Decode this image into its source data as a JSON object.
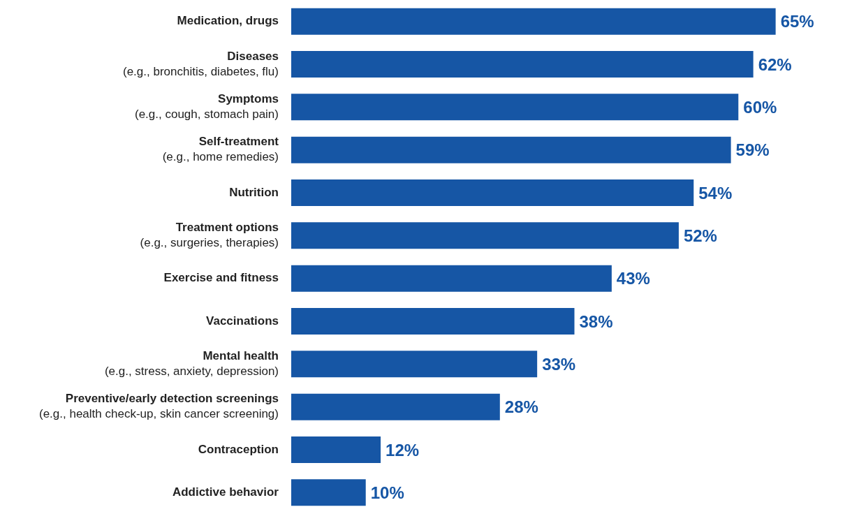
{
  "chart_data": {
    "type": "bar",
    "orientation": "horizontal",
    "categories": [
      "Medication, drugs",
      "Diseases\n(e.g., bronchitis, diabetes, flu)",
      "Symptoms\n(e.g., cough, stomach pain)",
      "Self-treatment\n(e.g., home remedies)",
      "Nutrition",
      "Treatment options\n(e.g., surgeries, therapies)",
      "Exercise and fitness",
      "Vaccinations",
      "Mental health\n(e.g., stress, anxiety, depression)",
      "Preventive/early detection screenings\n(e.g., health check-up, skin cancer screening)",
      "Contraception",
      "Addictive behavior"
    ],
    "values": [
      65,
      62,
      60,
      59,
      54,
      52,
      43,
      38,
      33,
      28,
      12,
      10
    ],
    "value_labels": [
      "65%",
      "62%",
      "60%",
      "59%",
      "54%",
      "52%",
      "43%",
      "38%",
      "33%",
      "28%",
      "12%",
      "10%"
    ],
    "color": "#1656a5",
    "grid": false,
    "legend": false,
    "tick_labels": "y"
  }
}
